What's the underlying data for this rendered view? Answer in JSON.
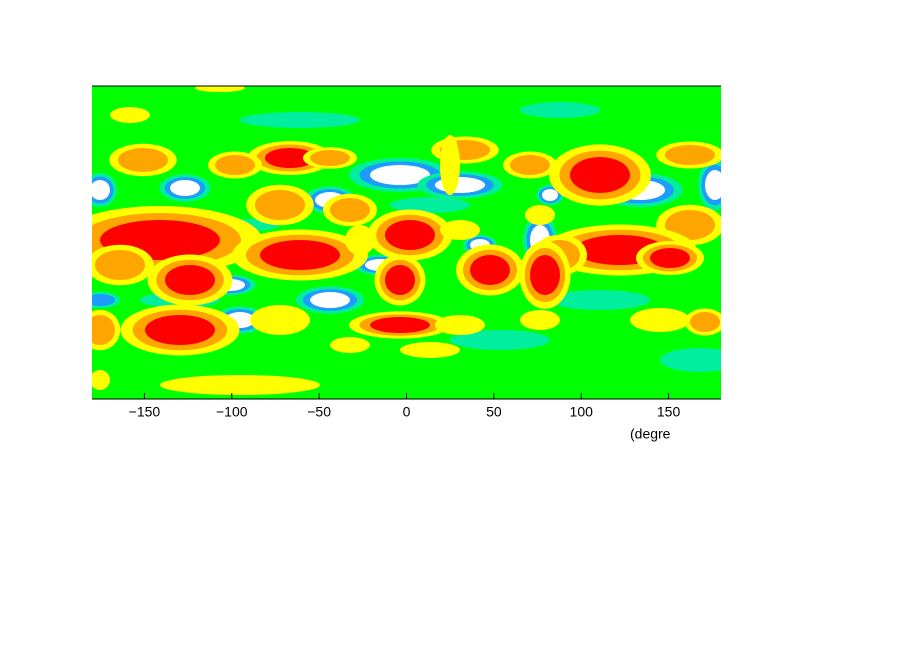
{
  "chart_data": {
    "type": "contour",
    "xlabel": "(degre",
    "xlim": [
      -180,
      180
    ],
    "xticks": [
      {
        "value": -150,
        "label": "−150"
      },
      {
        "value": -100,
        "label": "−100"
      },
      {
        "value": -50,
        "label": "−50"
      },
      0,
      50,
      100,
      150
    ],
    "colors": [
      "#ffffff",
      "#1e9bff",
      "#00ee9e",
      "#00ff00",
      "#ffff00",
      "#ffa500",
      "#ff0000"
    ]
  }
}
